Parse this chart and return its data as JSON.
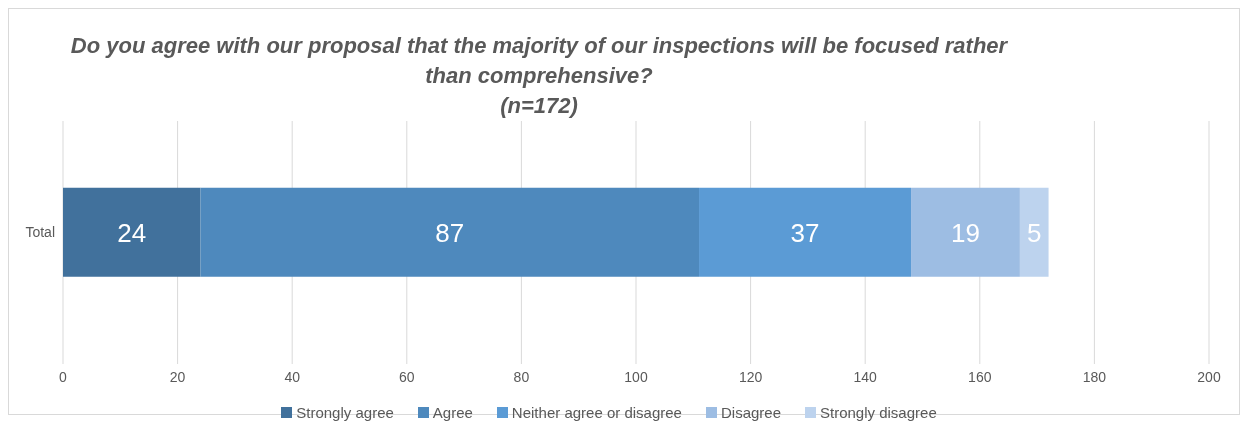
{
  "chart_data": {
    "type": "bar",
    "orientation": "horizontal",
    "stacked": true,
    "title": "Do you agree with our proposal that the majority of our inspections will be focused rather than comprehensive?\n(n=172)",
    "categories": [
      "Total"
    ],
    "series": [
      {
        "name": "Strongly agree",
        "color": "#41719c",
        "values": [
          24
        ]
      },
      {
        "name": "Agree",
        "color": "#4e89bd",
        "values": [
          87
        ]
      },
      {
        "name": "Neither agree or disagree",
        "color": "#5b9bd5",
        "values": [
          37
        ]
      },
      {
        "name": "Disagree",
        "color": "#9dbde3",
        "values": [
          19
        ]
      },
      {
        "name": "Strongly disagree",
        "color": "#bdd3ee",
        "values": [
          5
        ]
      }
    ],
    "xlim": [
      0,
      200
    ],
    "xticks": [
      0,
      20,
      40,
      60,
      80,
      100,
      120,
      140,
      160,
      180,
      200
    ],
    "grid": "x",
    "legend": "bottom",
    "data_labels": true
  }
}
